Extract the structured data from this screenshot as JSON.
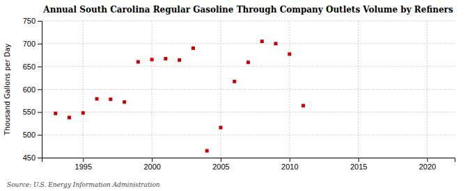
{
  "chart_data": {
    "type": "scatter",
    "title": "Annual South Carolina Regular Gasoline Through Company Outlets Volume by Refiners",
    "ylabel": "Thousand Gallons per Day",
    "source": "Source: U.S. Energy Information Administration",
    "x": [
      1993,
      1994,
      1995,
      1996,
      1997,
      1998,
      1999,
      2000,
      2001,
      2002,
      2003,
      2004,
      2005,
      2006,
      2007,
      2008,
      2009,
      2010,
      2011
    ],
    "values": [
      547,
      538,
      548,
      579,
      578,
      572,
      660,
      665,
      667,
      664,
      690,
      465,
      516,
      617,
      659,
      705,
      700,
      677,
      564
    ],
    "color": "#cc0000",
    "marker": "square",
    "xlim": [
      1992,
      2022
    ],
    "ylim": [
      450,
      750
    ],
    "xticks": [
      1995,
      2000,
      2005,
      2010,
      2015,
      2020
    ],
    "yticks": [
      450,
      500,
      550,
      600,
      650,
      700,
      750
    ],
    "grid": true
  }
}
